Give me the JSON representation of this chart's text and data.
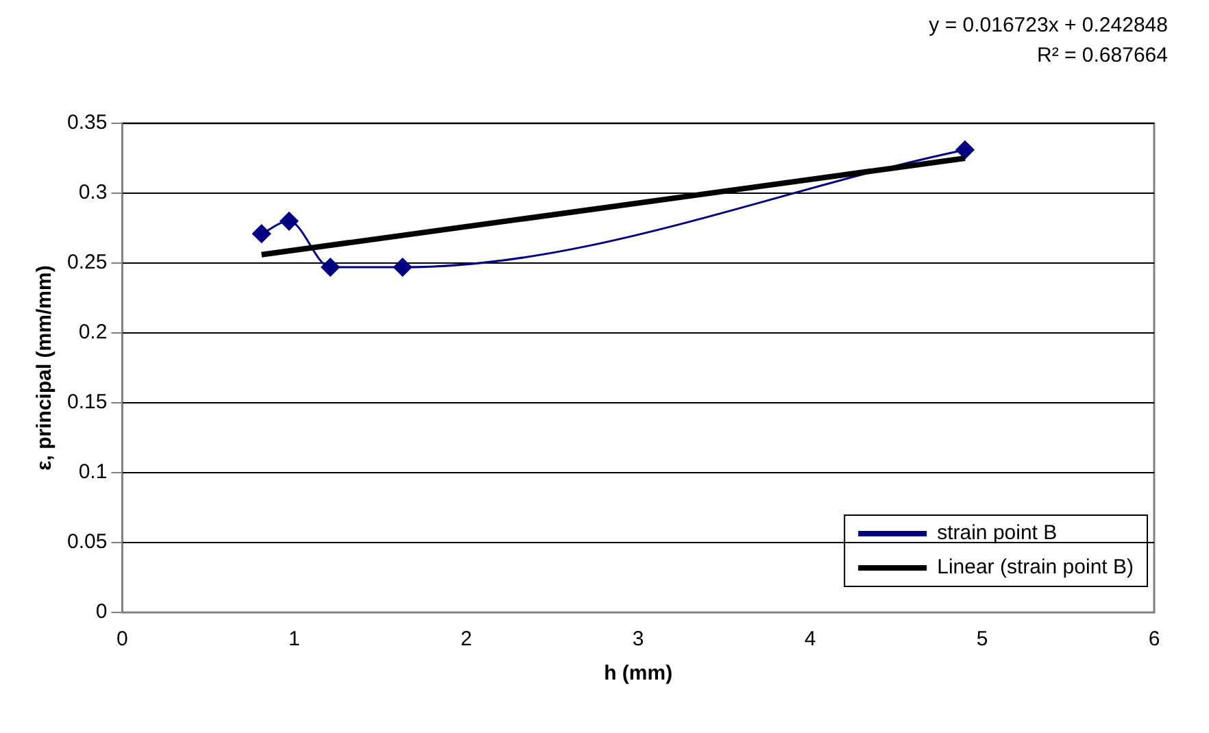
{
  "chart_data": {
    "type": "line",
    "xlabel": "h (mm)",
    "ylabel": "ε, principal (mm/mm)",
    "annotations": [
      "y = 0.016723x + 0.242848",
      "R² = 0.687664"
    ],
    "series": [
      {
        "name": "strain point B",
        "color": "#000080",
        "x": [
          0.81,
          0.97,
          1.21,
          1.63,
          4.9
        ],
        "values": [
          0.271,
          0.28,
          0.247,
          0.247,
          0.331
        ],
        "marker": "diamond"
      },
      {
        "name": "Linear (strain point B)",
        "color": "#000000",
        "x": [
          0.81,
          4.9
        ],
        "values": [
          0.256,
          0.325
        ],
        "marker": "none"
      }
    ],
    "xlim": [
      0,
      6
    ],
    "xticks": [
      0,
      1,
      2,
      3,
      4,
      5,
      6
    ],
    "ylim": [
      0,
      0.35
    ],
    "yticks": [
      0,
      0.05,
      0.1,
      0.15,
      0.2,
      0.25,
      0.3,
      0.35
    ],
    "grid": "y",
    "legend": "bottom right"
  }
}
